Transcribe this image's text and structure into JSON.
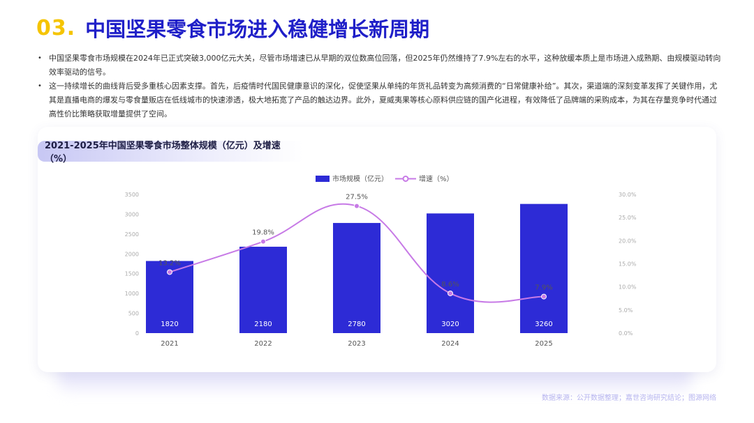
{
  "header": {
    "number": "03.",
    "title": "中国坚果零食市场进入稳健增长新周期"
  },
  "bullets": [
    "中国坚果零食市场规模在2024年已正式突破3,000亿元大关，尽管市场增速已从早期的双位数高位回落，但2025年仍然维持了7.9%左右的水平，这种放缓本质上是市场进入成熟期、由规模驱动转向效率驱动的信号。",
    "这一持续增长的曲线背后受多重核心因素支撑。首先，后疫情时代国民健康意识的深化，促使坚果从单纯的年货礼品转变为高频消费的“日常健康补给”。其次，渠道端的深刻变革发挥了关键作用，尤其是直播电商的爆发与零食量贩店在低线城市的快速渗透，极大地拓宽了产品的触达边界。此外，夏威夷果等核心原料供应链的国产化进程，有效降低了品牌端的采购成本，为其在存量竞争时代通过高性价比策略获取增量提供了空间。"
  ],
  "chart_data": {
    "type": "bar",
    "title": "2021-2025年中国坚果零食市场整体规模（亿元）及增速（%）",
    "categories": [
      "2021",
      "2022",
      "2023",
      "2024",
      "2025"
    ],
    "series": [
      {
        "name": "市场规模（亿元）",
        "type": "bar",
        "axis": "left",
        "values": [
          1820,
          2180,
          2780,
          3020,
          3260
        ],
        "color": "#2d2bd6"
      },
      {
        "name": "增速（%）",
        "type": "line",
        "axis": "right",
        "values": [
          13.2,
          19.8,
          27.5,
          8.6,
          7.9
        ],
        "color": "#c77ae6"
      }
    ],
    "y_left": {
      "ylim": [
        0,
        3500
      ],
      "ticks": [
        "0",
        "500",
        "1000",
        "1500",
        "2000",
        "2500",
        "3000",
        "3500"
      ]
    },
    "y_right": {
      "ylim": [
        0,
        30
      ],
      "ticks": [
        "0.0%",
        "5.0%",
        "10.0%",
        "15.0%",
        "20.0%",
        "25.0%",
        "30.0%"
      ]
    },
    "bar_labels": [
      "1820",
      "2180",
      "2780",
      "3020",
      "3260"
    ],
    "line_labels": [
      "13.2%",
      "19.8%",
      "27.5%",
      "8.6%",
      "7.9%"
    ],
    "legend_position": "top-center",
    "grid": false
  },
  "footer": {
    "source": "数据来源：公开数据整理；嘉世咨询研究结论；图源网络"
  }
}
